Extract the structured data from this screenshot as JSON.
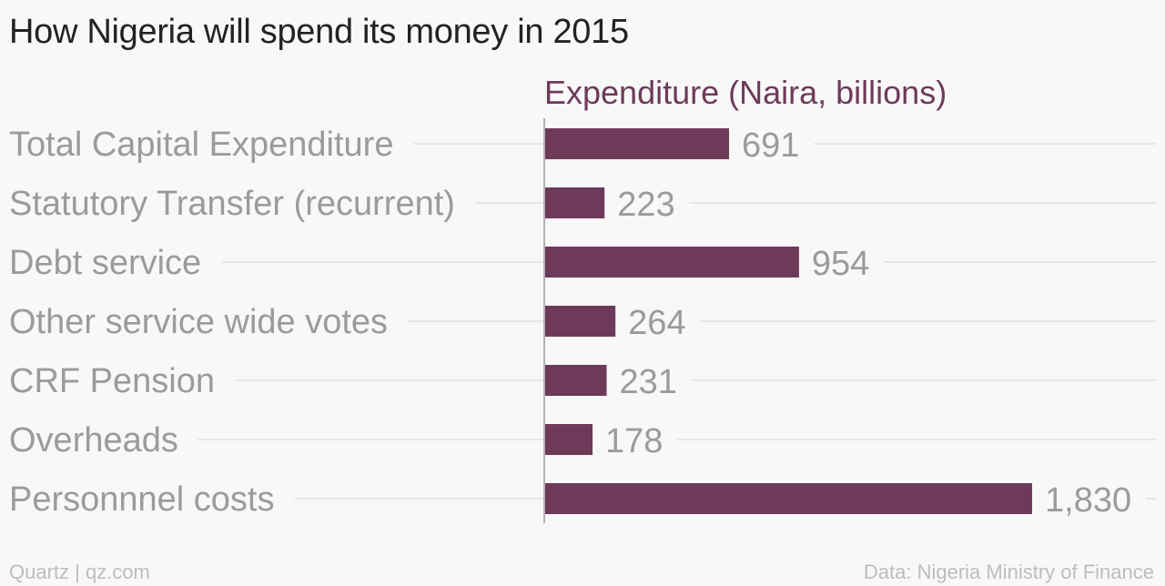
{
  "chart_data": {
    "type": "bar",
    "orientation": "horizontal",
    "title": "How Nigeria will spend its money in 2015",
    "series": [
      {
        "name": "Expenditure (Naira, billions)",
        "color": "#6e3a5a",
        "values": [
          691,
          223,
          954,
          264,
          231,
          178,
          1830
        ],
        "labels": [
          "691",
          "223",
          "954",
          "264",
          "231",
          "178",
          "1,830"
        ]
      }
    ],
    "categories": [
      "Total Capital Expenditure",
      "Statutory Transfer (recurrent)",
      "Debt service",
      "Other service wide votes",
      "CRF Pension",
      "Overheads",
      "Personnnel costs"
    ],
    "xlim": [
      0,
      2300
    ],
    "grid": true,
    "legend": "top"
  },
  "colors": {
    "bar": "#6e3a5a",
    "series_label": "#6e3a5a",
    "category_text": "#9b9b9b",
    "value_text": "#9b9b9b",
    "gridline": "#e6e6e6",
    "axis": "#9b9b9b"
  },
  "footer": {
    "source_left": "Quartz | qz.com",
    "source_right": "Data: Nigeria Ministry of Finance"
  }
}
